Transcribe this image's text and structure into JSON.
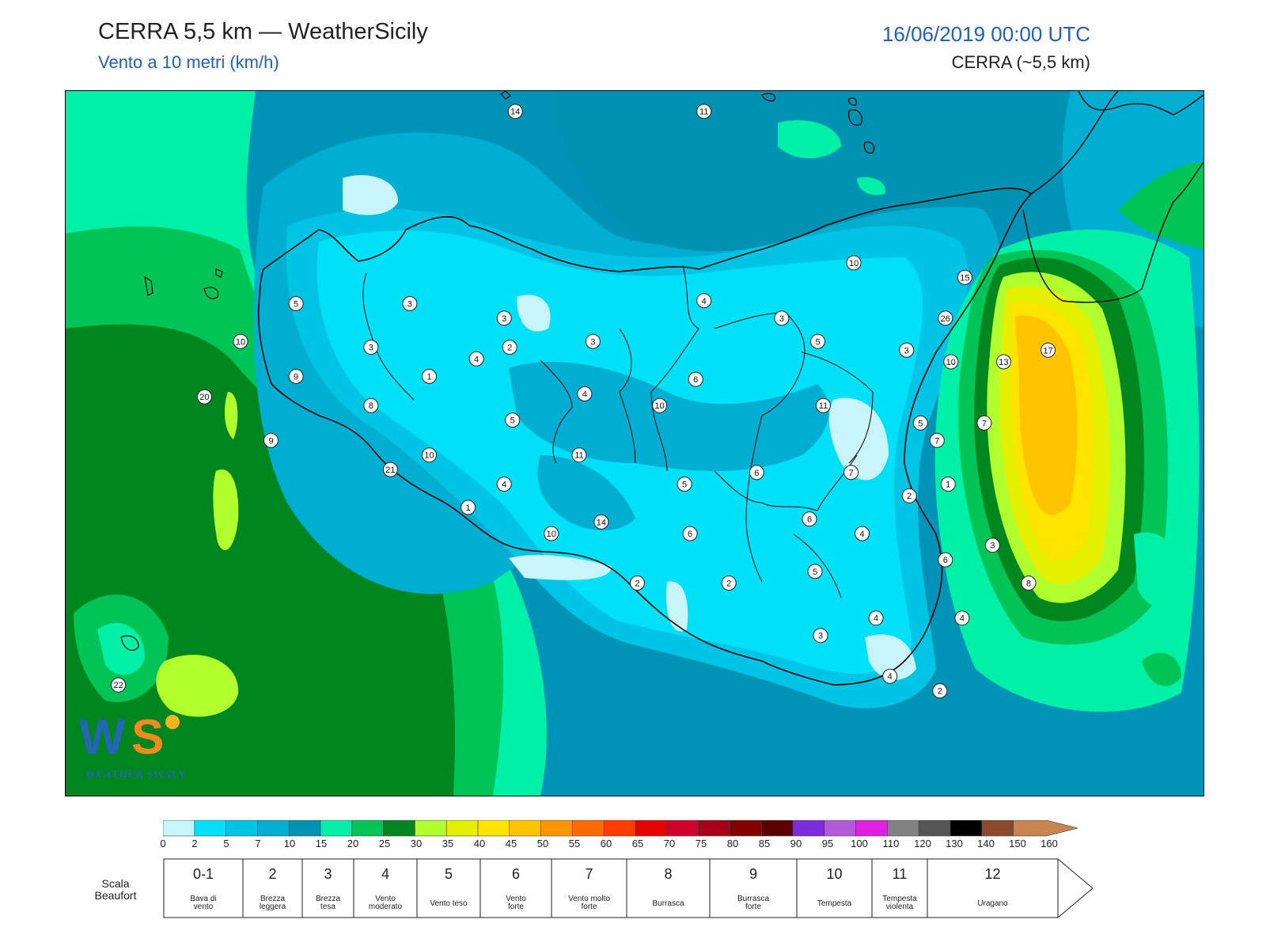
{
  "header": {
    "title": "CERRA 5,5 km — WeatherSicily",
    "subtitle": "Vento a 10 metri (km/h)",
    "datetime": "16/06/2019 00:00 UTC",
    "model": "CERRA (~5,5 km)"
  },
  "logo": {
    "text": "WEATHER SICILY",
    "mark": "WS"
  },
  "colors": {
    "sea_base": "#0093b8",
    "band_0_2": "#c8f4fb",
    "band_2_5": "#00e0f8",
    "band_5_7": "#00c4e4",
    "band_7_10": "#00aed2",
    "band_10_15": "#0092b2",
    "band_15_20": "#00f0a8",
    "band_20_25": "#00c455",
    "band_25_30": "#00861e",
    "band_30_35": "#b2ff2e",
    "band_35_40": "#e4f000",
    "band_40_45": "#ffe400",
    "band_45_50": "#ffc300"
  },
  "colorbar": {
    "colors": [
      "#c8f4fb",
      "#00e0f8",
      "#00c4e4",
      "#00aed2",
      "#0092b2",
      "#00f0a8",
      "#00c455",
      "#00861e",
      "#b2ff2e",
      "#e4f000",
      "#ffe400",
      "#ffc300",
      "#ff9500",
      "#ff6a00",
      "#ff3c00",
      "#e80000",
      "#d0002a",
      "#a80018",
      "#840000",
      "#5c0000",
      "#7a2dd8",
      "#b45ad8",
      "#e020e0",
      "#828282",
      "#555555",
      "#000000",
      "#8b4a2b",
      "#c8864e"
    ],
    "ticks": [
      "0",
      "2",
      "5",
      "7",
      "10",
      "15",
      "20",
      "25",
      "30",
      "35",
      "40",
      "45",
      "50",
      "55",
      "60",
      "65",
      "70",
      "75",
      "80",
      "85",
      "90",
      "95",
      "100",
      "110",
      "120",
      "130",
      "140",
      "150",
      "160"
    ]
  },
  "beaufort": {
    "label": "Scala\nBeaufort",
    "classes": [
      {
        "num": "0-1",
        "desc": [
          "Bava di",
          "vento"
        ]
      },
      {
        "num": "2",
        "desc": [
          "Brezza",
          "leggera"
        ]
      },
      {
        "num": "3",
        "desc": [
          "Brezza",
          "tesa"
        ]
      },
      {
        "num": "4",
        "desc": [
          "Vento",
          "moderato"
        ]
      },
      {
        "num": "5",
        "desc": [
          "Vento teso"
        ]
      },
      {
        "num": "6",
        "desc": [
          "Vento",
          "forte"
        ]
      },
      {
        "num": "7",
        "desc": [
          "Vento molto",
          "forte"
        ]
      },
      {
        "num": "8",
        "desc": [
          "Burrasca"
        ]
      },
      {
        "num": "9",
        "desc": [
          "Burrasca",
          "forte"
        ]
      },
      {
        "num": "10",
        "desc": [
          "Tempesta"
        ]
      },
      {
        "num": "11",
        "desc": [
          "Tempesta",
          "violenta"
        ]
      },
      {
        "num": "12",
        "desc": [
          "Uragano"
        ]
      }
    ]
  },
  "stations": [
    {
      "v": "14",
      "lon": 13.37,
      "lat": 38.8
    },
    {
      "v": "11",
      "lon": 14.05,
      "lat": 38.8
    },
    {
      "v": "10",
      "lon": 14.59,
      "lat": 38.28
    },
    {
      "v": "15",
      "lon": 14.99,
      "lat": 38.23
    },
    {
      "v": "26",
      "lon": 14.92,
      "lat": 38.09
    },
    {
      "v": "5",
      "lon": 12.58,
      "lat": 38.14
    },
    {
      "v": "3",
      "lon": 12.99,
      "lat": 38.14
    },
    {
      "v": "3",
      "lon": 13.33,
      "lat": 38.09
    },
    {
      "v": "4",
      "lon": 14.05,
      "lat": 38.15
    },
    {
      "v": "3",
      "lon": 14.33,
      "lat": 38.09
    },
    {
      "v": "10",
      "lon": 12.38,
      "lat": 38.01
    },
    {
      "v": "3",
      "lon": 13.65,
      "lat": 38.01
    },
    {
      "v": "5",
      "lon": 14.46,
      "lat": 38.01
    },
    {
      "v": "3",
      "lon": 14.78,
      "lat": 37.98
    },
    {
      "v": "17",
      "lon": 15.29,
      "lat": 37.98
    },
    {
      "v": "3",
      "lon": 12.85,
      "lat": 37.99
    },
    {
      "v": "2",
      "lon": 13.35,
      "lat": 37.99
    },
    {
      "v": "4",
      "lon": 13.23,
      "lat": 37.95
    },
    {
      "v": "10",
      "lon": 14.94,
      "lat": 37.94
    },
    {
      "v": "13",
      "lon": 15.13,
      "lat": 37.94
    },
    {
      "v": "9",
      "lon": 12.58,
      "lat": 37.89
    },
    {
      "v": "1",
      "lon": 13.06,
      "lat": 37.89
    },
    {
      "v": "6",
      "lon": 14.02,
      "lat": 37.88
    },
    {
      "v": "20",
      "lon": 12.25,
      "lat": 37.82
    },
    {
      "v": "4",
      "lon": 13.62,
      "lat": 37.83
    },
    {
      "v": "8",
      "lon": 12.85,
      "lat": 37.79
    },
    {
      "v": "10",
      "lon": 13.89,
      "lat": 37.79
    },
    {
      "v": "11",
      "lon": 14.48,
      "lat": 37.79
    },
    {
      "v": "5",
      "lon": 13.36,
      "lat": 37.74
    },
    {
      "v": "5",
      "lon": 14.83,
      "lat": 37.73
    },
    {
      "v": "7",
      "lon": 15.06,
      "lat": 37.73
    },
    {
      "v": "9",
      "lon": 12.49,
      "lat": 37.67
    },
    {
      "v": "7",
      "lon": 14.89,
      "lat": 37.67
    },
    {
      "v": "10",
      "lon": 13.06,
      "lat": 37.62
    },
    {
      "v": "11",
      "lon": 13.6,
      "lat": 37.62
    },
    {
      "v": "21",
      "lon": 12.92,
      "lat": 37.57
    },
    {
      "v": "6",
      "lon": 14.24,
      "lat": 37.56
    },
    {
      "v": "7",
      "lon": 14.58,
      "lat": 37.56
    },
    {
      "v": "4",
      "lon": 13.33,
      "lat": 37.52
    },
    {
      "v": "5",
      "lon": 13.98,
      "lat": 37.52
    },
    {
      "v": "1",
      "lon": 14.93,
      "lat": 37.52
    },
    {
      "v": "2",
      "lon": 14.79,
      "lat": 37.48
    },
    {
      "v": "1",
      "lon": 13.2,
      "lat": 37.44
    },
    {
      "v": "14",
      "lon": 13.68,
      "lat": 37.39
    },
    {
      "v": "6",
      "lon": 14.43,
      "lat": 37.4
    },
    {
      "v": "10",
      "lon": 13.5,
      "lat": 37.35
    },
    {
      "v": "6",
      "lon": 14.0,
      "lat": 37.35
    },
    {
      "v": "4",
      "lon": 14.62,
      "lat": 37.35
    },
    {
      "v": "3",
      "lon": 15.09,
      "lat": 37.31
    },
    {
      "v": "6",
      "lon": 14.92,
      "lat": 37.26
    },
    {
      "v": "5",
      "lon": 14.45,
      "lat": 37.22
    },
    {
      "v": "2",
      "lon": 13.81,
      "lat": 37.18
    },
    {
      "v": "2",
      "lon": 14.14,
      "lat": 37.18
    },
    {
      "v": "8",
      "lon": 15.22,
      "lat": 37.18
    },
    {
      "v": "4",
      "lon": 14.67,
      "lat": 37.06
    },
    {
      "v": "4",
      "lon": 14.98,
      "lat": 37.06
    },
    {
      "v": "3",
      "lon": 14.47,
      "lat": 37.0
    },
    {
      "v": "22",
      "lon": 11.94,
      "lat": 36.83
    },
    {
      "v": "4",
      "lon": 14.72,
      "lat": 36.86
    },
    {
      "v": "2",
      "lon": 14.9,
      "lat": 36.81
    }
  ]
}
